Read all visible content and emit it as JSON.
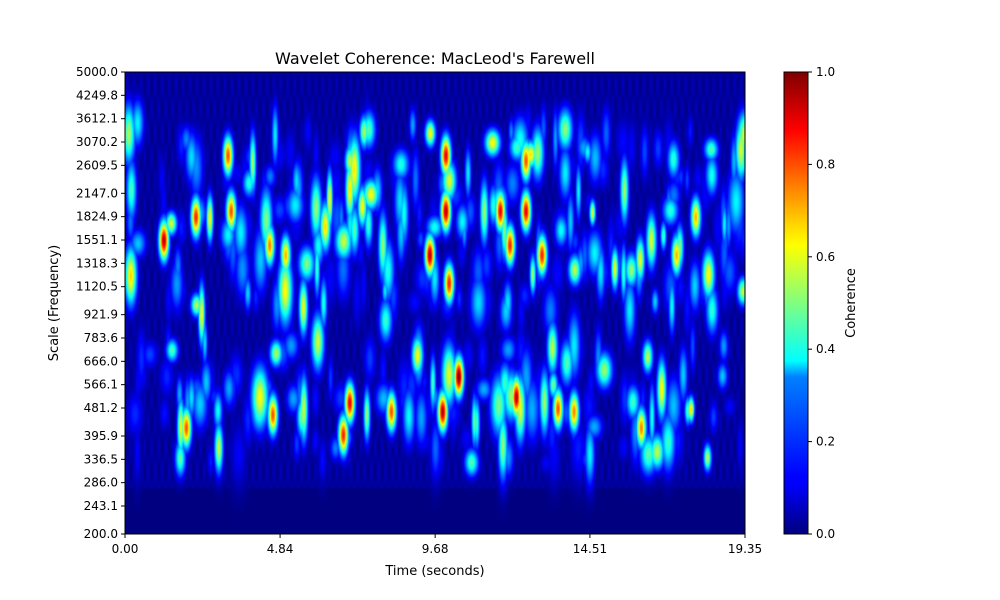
{
  "chart_data": {
    "type": "heatmap",
    "title": "Wavelet Coherence: MacLeod's Farewell",
    "xlabel": "Time (seconds)",
    "ylabel": "Scale (Frequency)",
    "x_ticks": [
      "0.00",
      "4.84",
      "9.68",
      "14.51",
      "19.35"
    ],
    "x_range": [
      0.0,
      19.35
    ],
    "y_ticks": [
      "5000.0",
      "4249.8",
      "3612.1",
      "3070.2",
      "2609.5",
      "2147.0",
      "1824.9",
      "1551.1",
      "1318.3",
      "1120.5",
      "921.9",
      "783.6",
      "666.0",
      "566.1",
      "481.2",
      "395.9",
      "336.5",
      "286.0",
      "243.1",
      "200.0"
    ],
    "y_range": [
      200.0,
      5000.0
    ],
    "y_scale": "log",
    "colormap": "jet",
    "colorbar": {
      "label": "Coherence",
      "range": [
        0.0,
        1.0
      ],
      "ticks": [
        "0.0",
        "0.2",
        "0.4",
        "0.6",
        "0.8",
        "1.0"
      ]
    },
    "background_value": 0.0,
    "band_centers": [
      1551.1,
      2000.0,
      1120.5,
      600.0,
      420.0,
      2800.0
    ],
    "high_coherence_spots": [
      {
        "time": 1.2,
        "scale": 1551.1,
        "coherence": 0.95
      },
      {
        "time": 2.2,
        "scale": 1824.9,
        "coherence": 0.85
      },
      {
        "time": 3.2,
        "scale": 2800.0,
        "coherence": 0.8
      },
      {
        "time": 3.3,
        "scale": 1900.0,
        "coherence": 0.8
      },
      {
        "time": 4.5,
        "scale": 1500.0,
        "coherence": 0.75
      },
      {
        "time": 5.0,
        "scale": 1400.0,
        "coherence": 0.7
      },
      {
        "time": 1.9,
        "scale": 420.0,
        "coherence": 0.8
      },
      {
        "time": 4.6,
        "scale": 460.0,
        "coherence": 0.8
      },
      {
        "time": 7.0,
        "scale": 500.0,
        "coherence": 0.9
      },
      {
        "time": 6.8,
        "scale": 400.0,
        "coherence": 0.85
      },
      {
        "time": 8.3,
        "scale": 470.0,
        "coherence": 0.8
      },
      {
        "time": 9.5,
        "scale": 1400.0,
        "coherence": 0.95
      },
      {
        "time": 10.0,
        "scale": 2800.0,
        "coherence": 0.9
      },
      {
        "time": 10.0,
        "scale": 1900.0,
        "coherence": 0.95
      },
      {
        "time": 10.1,
        "scale": 1150.0,
        "coherence": 0.85
      },
      {
        "time": 10.4,
        "scale": 600.0,
        "coherence": 1.0
      },
      {
        "time": 9.9,
        "scale": 470.0,
        "coherence": 0.95
      },
      {
        "time": 11.7,
        "scale": 1900.0,
        "coherence": 0.9
      },
      {
        "time": 12.0,
        "scale": 1500.0,
        "coherence": 0.85
      },
      {
        "time": 12.2,
        "scale": 520.0,
        "coherence": 0.95
      },
      {
        "time": 12.5,
        "scale": 2700.0,
        "coherence": 0.8
      },
      {
        "time": 12.5,
        "scale": 1900.0,
        "coherence": 0.9
      },
      {
        "time": 13.0,
        "scale": 1400.0,
        "coherence": 0.85
      },
      {
        "time": 13.5,
        "scale": 480.0,
        "coherence": 0.8
      },
      {
        "time": 14.0,
        "scale": 470.0,
        "coherence": 0.75
      },
      {
        "time": 16.1,
        "scale": 420.0,
        "coherence": 0.75
      },
      {
        "time": 17.2,
        "scale": 1400.0,
        "coherence": 0.7
      },
      {
        "time": 17.8,
        "scale": 1824.9,
        "coherence": 0.7
      }
    ]
  }
}
